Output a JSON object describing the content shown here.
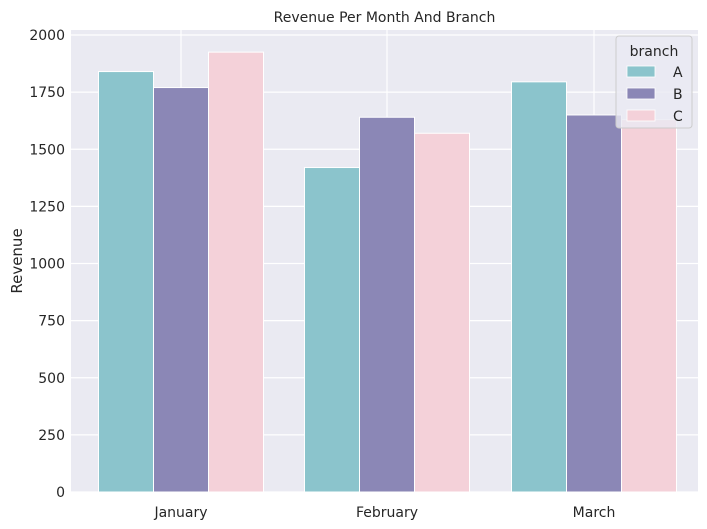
{
  "chart_data": {
    "type": "bar",
    "title": "Revenue Per Month And Branch",
    "xlabel": "",
    "ylabel": "Revenue",
    "ylim": [
      0,
      2040
    ],
    "yticks": [
      0,
      250,
      500,
      750,
      1000,
      1250,
      1500,
      1750,
      2000
    ],
    "grid": true,
    "legend": {
      "title": "branch",
      "placement": "top-right"
    },
    "categories": [
      "January",
      "February",
      "March"
    ],
    "series": [
      {
        "name": "A",
        "color": "#8bc4cc",
        "values": [
          1840,
          1420,
          1795
        ]
      },
      {
        "name": "B",
        "color": "#8b87b6",
        "values": [
          1770,
          1640,
          1650
        ]
      },
      {
        "name": "C",
        "color": "#f4d1d9",
        "values": [
          1925,
          1570,
          1630
        ]
      }
    ],
    "background_color": "#eaeaf2"
  }
}
